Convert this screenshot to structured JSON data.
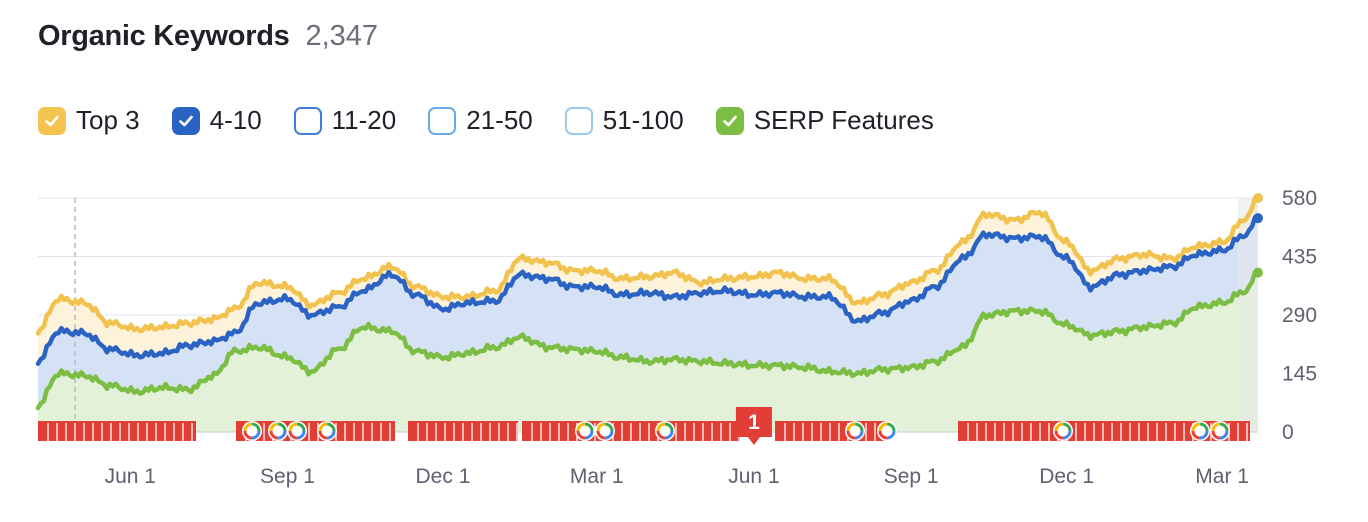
{
  "header": {
    "title": "Organic Keywords",
    "count": "2,347"
  },
  "legend": [
    {
      "label": "Top 3",
      "checked": true,
      "color": "#f5c350",
      "border": "#f5c350",
      "icon": "checkmark-icon"
    },
    {
      "label": "4-10",
      "checked": true,
      "color": "#2a63c4",
      "border": "#2a63c4",
      "icon": "checkmark-icon"
    },
    {
      "label": "11-20",
      "checked": false,
      "color": "#ffffff",
      "border": "#3f7fd9",
      "icon": ""
    },
    {
      "label": "21-50",
      "checked": false,
      "color": "#ffffff",
      "border": "#6aa9e6",
      "icon": ""
    },
    {
      "label": "51-100",
      "checked": false,
      "color": "#ffffff",
      "border": "#9ccaef",
      "icon": ""
    },
    {
      "label": "SERP Features",
      "checked": true,
      "color": "#7cbe43",
      "border": "#7cbe43",
      "icon": "checkmark-icon"
    }
  ],
  "colors": {
    "top3_line": "#f2c24f",
    "top3_fill": "#fdf3da",
    "t410_line": "#2a63c4",
    "t410_fill": "#d5e2f5",
    "serp_line": "#7cbe43",
    "serp_fill": "#e4f1d9",
    "notes_marker": "#e13e36",
    "google_marker_icon": "google-g-icon"
  },
  "chart_data": {
    "type": "area",
    "y_ticks": [
      "580",
      "435",
      "290",
      "145",
      "0"
    ],
    "ylim": [
      0,
      580
    ],
    "x_tick_labels": [
      "Jun 1",
      "Sep 1",
      "Dec 1",
      "Mar 1",
      "Jun 1",
      "Sep 1",
      "Dec 1",
      "Mar 1"
    ],
    "x_tick_dates": [
      "2022-06-01",
      "2022-09-01",
      "2022-12-01",
      "2023-03-01",
      "2023-06-01",
      "2023-09-01",
      "2023-12-01",
      "2024-03-01"
    ],
    "x_range": [
      "2022-04-08",
      "2024-03-22"
    ],
    "notes_badge": "1",
    "notes_badge_date": "2023-06-01",
    "series": [
      {
        "name": "Top 3",
        "x": [
          "2022-04-08",
          "2022-04-20",
          "2022-05-05",
          "2022-05-20",
          "2022-06-05",
          "2022-06-20",
          "2022-07-05",
          "2022-07-20",
          "2022-08-01",
          "2022-08-15",
          "2022-09-01",
          "2022-09-15",
          "2022-10-01",
          "2022-10-15",
          "2022-11-01",
          "2022-11-15",
          "2022-12-01",
          "2022-12-15",
          "2023-01-01",
          "2023-01-15",
          "2023-02-01",
          "2023-02-15",
          "2023-03-01",
          "2023-03-15",
          "2023-04-01",
          "2023-04-15",
          "2023-05-01",
          "2023-05-15",
          "2023-06-01",
          "2023-06-15",
          "2023-07-01",
          "2023-07-15",
          "2023-08-01",
          "2023-08-15",
          "2023-09-01",
          "2023-09-15",
          "2023-10-01",
          "2023-10-15",
          "2023-11-01",
          "2023-11-15",
          "2023-12-01",
          "2023-12-15",
          "2024-01-01",
          "2024-01-15",
          "2024-02-01",
          "2024-02-15",
          "2024-03-01",
          "2024-03-15",
          "2024-03-22"
        ],
        "values": [
          250,
          330,
          320,
          270,
          255,
          260,
          270,
          280,
          305,
          370,
          360,
          315,
          345,
          380,
          410,
          360,
          335,
          335,
          350,
          430,
          420,
          400,
          400,
          380,
          385,
          395,
          370,
          380,
          385,
          395,
          380,
          380,
          320,
          340,
          370,
          400,
          470,
          540,
          525,
          545,
          470,
          400,
          430,
          440,
          430,
          460,
          470,
          530,
          580
        ]
      },
      {
        "name": "4-10",
        "x": [
          "2022-04-08",
          "2022-04-20",
          "2022-05-05",
          "2022-05-20",
          "2022-06-05",
          "2022-06-20",
          "2022-07-05",
          "2022-07-20",
          "2022-08-01",
          "2022-08-15",
          "2022-09-01",
          "2022-09-15",
          "2022-10-01",
          "2022-10-15",
          "2022-11-01",
          "2022-11-15",
          "2022-12-01",
          "2022-12-15",
          "2023-01-01",
          "2023-01-15",
          "2023-02-01",
          "2023-02-15",
          "2023-03-01",
          "2023-03-15",
          "2023-04-01",
          "2023-04-15",
          "2023-05-01",
          "2023-05-15",
          "2023-06-01",
          "2023-06-15",
          "2023-07-01",
          "2023-07-15",
          "2023-08-01",
          "2023-08-15",
          "2023-09-01",
          "2023-09-15",
          "2023-10-01",
          "2023-10-15",
          "2023-11-01",
          "2023-11-15",
          "2023-12-01",
          "2023-12-15",
          "2024-01-01",
          "2024-01-15",
          "2024-02-01",
          "2024-02-15",
          "2024-03-01",
          "2024-03-15",
          "2024-03-22"
        ],
        "values": [
          175,
          250,
          245,
          205,
          190,
          195,
          215,
          225,
          245,
          320,
          330,
          290,
          310,
          350,
          390,
          340,
          305,
          320,
          325,
          390,
          380,
          360,
          360,
          340,
          345,
          335,
          345,
          350,
          340,
          345,
          335,
          335,
          275,
          295,
          325,
          360,
          430,
          490,
          480,
          485,
          430,
          360,
          390,
          400,
          410,
          440,
          450,
          490,
          530
        ]
      },
      {
        "name": "SERP Features",
        "x": [
          "2022-04-08",
          "2022-04-20",
          "2022-05-05",
          "2022-05-20",
          "2022-06-05",
          "2022-06-20",
          "2022-07-05",
          "2022-07-20",
          "2022-08-01",
          "2022-08-15",
          "2022-09-01",
          "2022-09-15",
          "2022-10-01",
          "2022-10-15",
          "2022-11-01",
          "2022-11-15",
          "2022-12-01",
          "2022-12-15",
          "2023-01-01",
          "2023-01-15",
          "2023-02-01",
          "2023-02-15",
          "2023-03-01",
          "2023-03-15",
          "2023-04-01",
          "2023-04-15",
          "2023-05-01",
          "2023-05-15",
          "2023-06-01",
          "2023-06-15",
          "2023-07-01",
          "2023-07-15",
          "2023-08-01",
          "2023-08-15",
          "2023-09-01",
          "2023-09-15",
          "2023-10-01",
          "2023-10-15",
          "2023-11-01",
          "2023-11-15",
          "2023-12-01",
          "2023-12-15",
          "2024-01-01",
          "2024-01-15",
          "2024-02-01",
          "2024-02-15",
          "2024-03-01",
          "2024-03-15",
          "2024-03-22"
        ],
        "values": [
          65,
          145,
          140,
          115,
          100,
          110,
          105,
          140,
          200,
          210,
          185,
          150,
          205,
          260,
          250,
          200,
          185,
          195,
          210,
          235,
          210,
          205,
          200,
          185,
          175,
          180,
          175,
          170,
          165,
          165,
          160,
          150,
          145,
          155,
          160,
          175,
          210,
          290,
          300,
          300,
          265,
          240,
          250,
          260,
          270,
          310,
          320,
          350,
          395
        ]
      }
    ]
  }
}
